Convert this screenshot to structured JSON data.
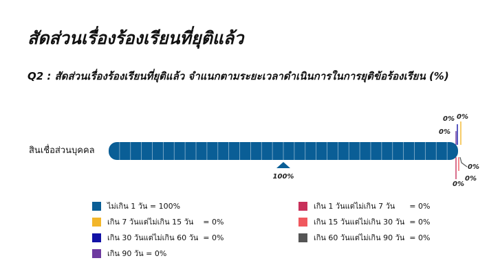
{
  "page": {
    "title": "สัดส่วนเรื่องร้องเรียนที่ยุติแล้ว",
    "subtitle": "Q2 : สัดส่วนเรื่องร้องเรียนที่ยุติแล้ว จำแนกตามระยะเวลาดำเนินการในการยุติข้อร้องเรียน (%)"
  },
  "chart_data": {
    "type": "bar",
    "orientation": "horizontal",
    "stacked": true,
    "categories": [
      "สินเชื่อส่วนบุคคล"
    ],
    "xlim": [
      0,
      100
    ],
    "series": [
      {
        "name": "ไม่เกิน 1 วัน",
        "value": 100,
        "label": "100%",
        "color": "#0a5e96",
        "legend_text": "ไม่เกิน 1 วัน = 100%"
      },
      {
        "name": "เกิน 1 วันแต่ไม่เกิน 7 วัน",
        "value": 0,
        "label": "0%",
        "color": "#c8305a",
        "legend_text": "เกิน 1 วันแต่ไม่เกิน 7 วัน      = 0%"
      },
      {
        "name": "เกิน 7 วันแต่ไม่เกิน 15 วัน",
        "value": 0,
        "label": "0%",
        "color": "#f2b62a",
        "legend_text": "เกิน 7 วันแต่ไม่เกิน 15 วัน    = 0%"
      },
      {
        "name": "เกิน 15 วันแต่ไม่เกิน 30 วัน",
        "value": 0,
        "label": "0%",
        "color": "#f0585e",
        "legend_text": "เกิน 15 วันแต่ไม่เกิน 30 วัน  = 0%"
      },
      {
        "name": "เกิน 30 วันแต่ไม่เกิน 60 วัน",
        "value": 0,
        "label": "0%",
        "color": "#1212a6",
        "legend_text": "เกิน 30 วันแต่ไม่เกิน 60 วัน  = 0%"
      },
      {
        "name": "เกิน 60 วันแต่ไม่เกิน 90 วัน",
        "value": 0,
        "label": "0%",
        "color": "#555555",
        "legend_text": "เกิน 60 วันแต่ไม่เกิน 90 วัน  = 0%"
      },
      {
        "name": "เกิน 90 วัน",
        "value": 0,
        "label": "0%",
        "color": "#6e3aa0",
        "legend_text": "เกิน 90 วัน = 0%"
      }
    ],
    "legend_position": "bottom"
  }
}
